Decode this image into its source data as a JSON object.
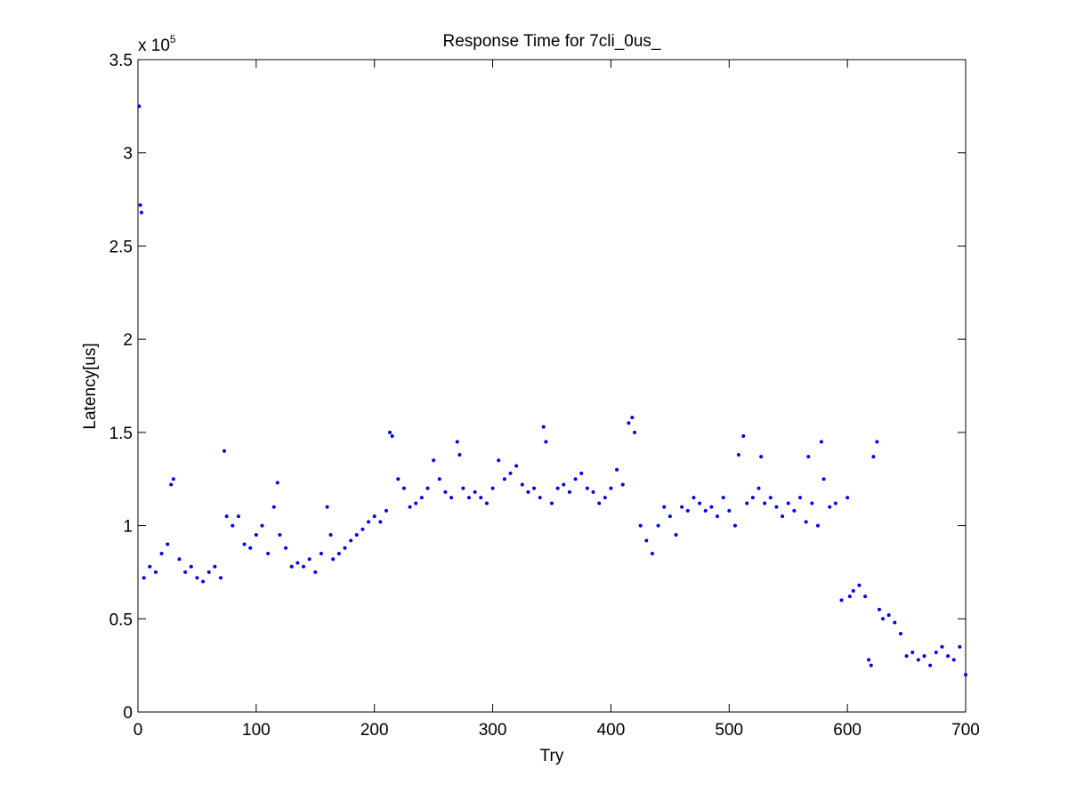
{
  "chart_data": {
    "type": "scatter",
    "title": "Response Time for 7cli_0us_",
    "x_label": "Try",
    "y_label": "Latency[us]",
    "y_multiplier": {
      "text": "x 10",
      "exponent": "5"
    },
    "xlim": [
      0,
      700
    ],
    "xticks": [
      0,
      100,
      200,
      300,
      400,
      500,
      600,
      700
    ],
    "ylim": [
      0,
      3.5
    ],
    "yticks": [
      0,
      0.5,
      1,
      1.5,
      2,
      2.5,
      3,
      3.5
    ],
    "grid": false,
    "color": "#0000ff",
    "x": [
      1,
      2,
      3,
      5,
      10,
      15,
      20,
      25,
      28,
      30,
      35,
      40,
      45,
      50,
      55,
      60,
      65,
      70,
      73,
      75,
      80,
      85,
      90,
      95,
      100,
      105,
      110,
      115,
      118,
      120,
      125,
      130,
      135,
      140,
      145,
      150,
      155,
      160,
      163,
      165,
      170,
      175,
      180,
      185,
      190,
      195,
      200,
      205,
      210,
      213,
      215,
      220,
      225,
      230,
      235,
      240,
      245,
      250,
      255,
      260,
      265,
      270,
      272,
      275,
      280,
      285,
      290,
      295,
      300,
      305,
      310,
      315,
      320,
      325,
      330,
      335,
      340,
      343,
      345,
      350,
      355,
      360,
      365,
      370,
      375,
      380,
      385,
      390,
      395,
      400,
      405,
      410,
      415,
      418,
      420,
      425,
      430,
      435,
      440,
      445,
      450,
      455,
      460,
      465,
      470,
      475,
      480,
      485,
      490,
      495,
      500,
      505,
      508,
      512,
      515,
      520,
      525,
      527,
      530,
      535,
      540,
      545,
      550,
      555,
      560,
      565,
      567,
      570,
      575,
      578,
      580,
      585,
      590,
      595,
      600,
      602,
      605,
      610,
      615,
      618,
      620,
      622,
      625,
      627,
      630,
      635,
      640,
      645,
      650,
      655,
      660,
      665,
      670,
      675,
      680,
      685,
      690,
      695,
      700
    ],
    "values": [
      3.25,
      2.72,
      2.68,
      0.72,
      0.78,
      0.75,
      0.85,
      0.9,
      1.22,
      1.25,
      0.82,
      0.75,
      0.78,
      0.72,
      0.7,
      0.75,
      0.78,
      0.72,
      1.4,
      1.05,
      1.0,
      1.05,
      0.9,
      0.88,
      0.95,
      1.0,
      0.85,
      1.1,
      1.23,
      0.95,
      0.88,
      0.78,
      0.8,
      0.78,
      0.82,
      0.75,
      0.85,
      1.1,
      0.95,
      0.82,
      0.85,
      0.88,
      0.92,
      0.95,
      0.98,
      1.02,
      1.05,
      1.02,
      1.08,
      1.5,
      1.48,
      1.25,
      1.2,
      1.1,
      1.12,
      1.15,
      1.2,
      1.35,
      1.25,
      1.18,
      1.15,
      1.45,
      1.38,
      1.2,
      1.15,
      1.18,
      1.15,
      1.12,
      1.2,
      1.35,
      1.25,
      1.28,
      1.32,
      1.22,
      1.18,
      1.2,
      1.15,
      1.53,
      1.45,
      1.12,
      1.2,
      1.22,
      1.18,
      1.25,
      1.28,
      1.2,
      1.18,
      1.12,
      1.15,
      1.2,
      1.3,
      1.22,
      1.55,
      1.58,
      1.5,
      1.0,
      0.92,
      0.85,
      1.0,
      1.1,
      1.05,
      0.95,
      1.1,
      1.08,
      1.15,
      1.12,
      1.08,
      1.1,
      1.05,
      1.15,
      1.08,
      1.0,
      1.38,
      1.48,
      1.12,
      1.15,
      1.2,
      1.37,
      1.12,
      1.15,
      1.1,
      1.05,
      1.12,
      1.08,
      1.15,
      1.02,
      1.37,
      1.12,
      1.0,
      1.45,
      1.25,
      1.1,
      1.12,
      0.6,
      1.15,
      0.62,
      0.65,
      0.68,
      0.62,
      0.28,
      0.25,
      1.37,
      1.45,
      0.55,
      0.5,
      0.52,
      0.48,
      0.42,
      0.3,
      0.32,
      0.28,
      0.3,
      0.25,
      0.32,
      0.35,
      0.3,
      0.28,
      0.35,
      0.2
    ]
  }
}
